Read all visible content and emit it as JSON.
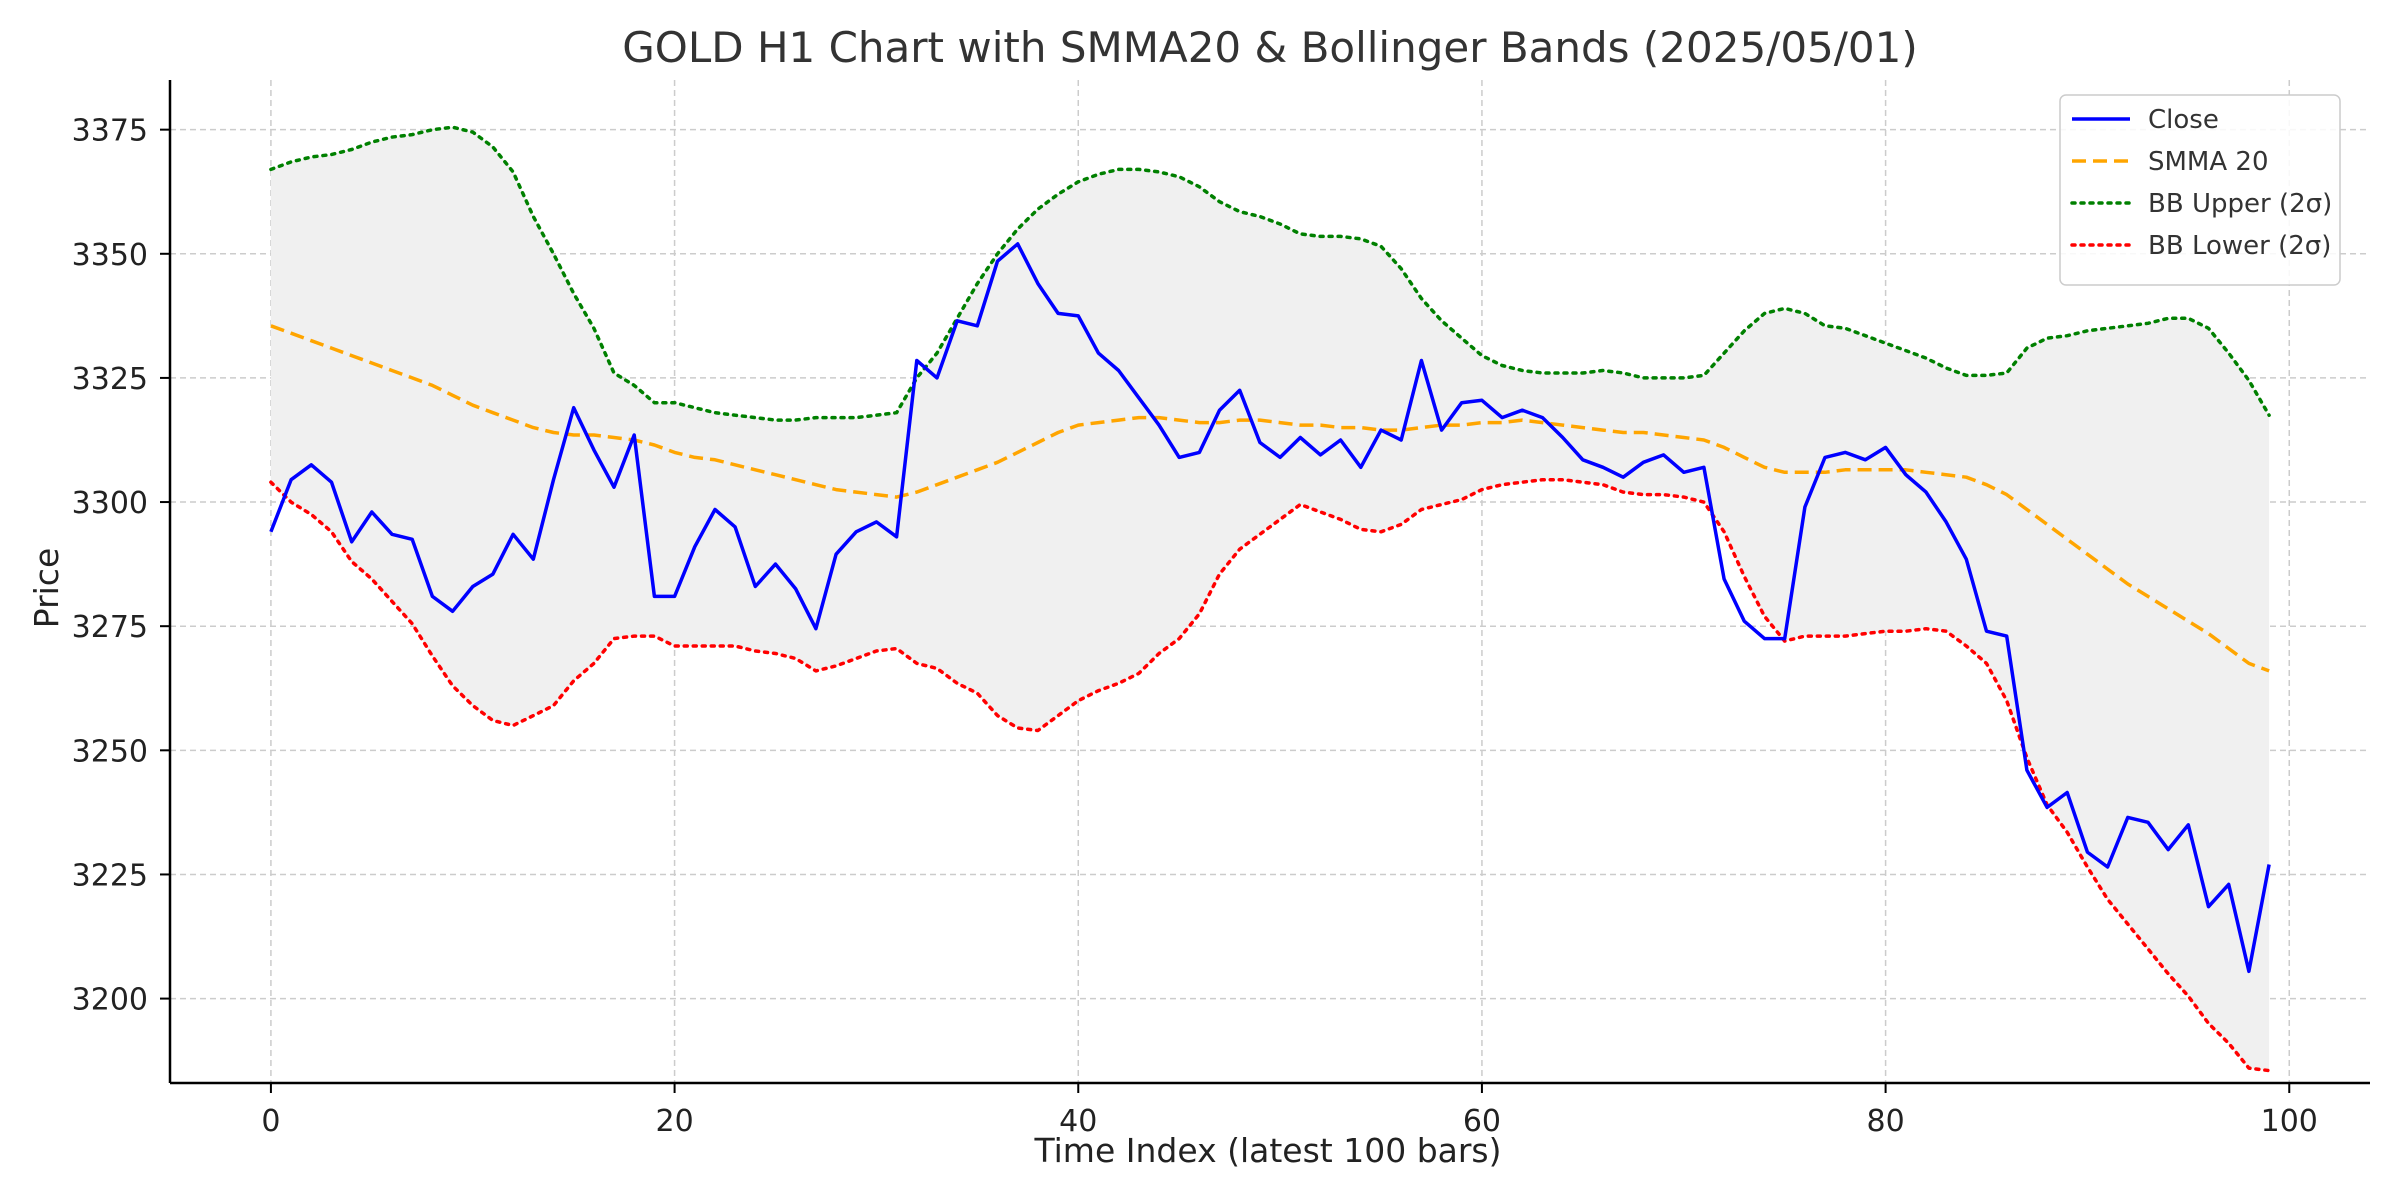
{
  "chart_data": {
    "type": "line",
    "title": "GOLD H1 Chart with SMMA20 & Bollinger Bands (2025/05/01)",
    "xlabel": "Time Index (latest 100 bars)",
    "ylabel": "Price",
    "xlim": [
      -5,
      104
    ],
    "ylim": [
      3183,
      3385
    ],
    "xticks": [
      0,
      20,
      40,
      60,
      80,
      100
    ],
    "yticks": [
      3200,
      3225,
      3250,
      3275,
      3300,
      3325,
      3350,
      3375
    ],
    "grid": true,
    "legend_position": "top-right",
    "band_fill_color": "#f0f0f0",
    "x": [
      0,
      1,
      2,
      3,
      4,
      5,
      6,
      7,
      8,
      9,
      10,
      11,
      12,
      13,
      14,
      15,
      16,
      17,
      18,
      19,
      20,
      21,
      22,
      23,
      24,
      25,
      26,
      27,
      28,
      29,
      30,
      31,
      32,
      33,
      34,
      35,
      36,
      37,
      38,
      39,
      40,
      41,
      42,
      43,
      44,
      45,
      46,
      47,
      48,
      49,
      50,
      51,
      52,
      53,
      54,
      55,
      56,
      57,
      58,
      59,
      60,
      61,
      62,
      63,
      64,
      65,
      66,
      67,
      68,
      69,
      70,
      71,
      72,
      73,
      74,
      75,
      76,
      77,
      78,
      79,
      80,
      81,
      82,
      83,
      84,
      85,
      86,
      87,
      88,
      89,
      90,
      91,
      92,
      93,
      94,
      95,
      96,
      97,
      98,
      99
    ],
    "series": [
      {
        "name": "Close",
        "color": "#0000ff",
        "style": "solid",
        "values": [
          3294,
          3304.5,
          3307.5,
          3304,
          3292,
          3298,
          3293.5,
          3292.5,
          3281,
          3278,
          3283,
          3285.5,
          3293.5,
          3288.5,
          3304.5,
          3319,
          3310.5,
          3303,
          3313.5,
          3281,
          3281,
          3291,
          3298.5,
          3295,
          3283,
          3287.5,
          3282.5,
          3274.5,
          3289.5,
          3294,
          3296,
          3293,
          3328.5,
          3325,
          3336.5,
          3335.5,
          3348.5,
          3352,
          3344,
          3338,
          3337.5,
          3330,
          3326.5,
          3321,
          3315.5,
          3309,
          3310,
          3318.5,
          3322.5,
          3312,
          3309,
          3313,
          3309.5,
          3312.5,
          3307,
          3314.5,
          3312.5,
          3328.5,
          3314.5,
          3320,
          3320.5,
          3317,
          3318.5,
          3317,
          3313,
          3308.5,
          3307,
          3305,
          3308,
          3309.5,
          3306,
          3307,
          3284.5,
          3276,
          3272.5,
          3272.5,
          3299,
          3309,
          3310,
          3308.5,
          3311,
          3305.5,
          3302,
          3296,
          3288.5,
          3274,
          3273,
          3246,
          3238.5,
          3241.5,
          3229.5,
          3226.5,
          3236.5,
          3235.5,
          3230,
          3235,
          3218.5,
          3223,
          3205.5,
          3227
        ]
      },
      {
        "name": "SMMA 20",
        "color": "#ffa500",
        "style": "dashed",
        "values": [
          3335.5,
          3334,
          3332.5,
          3331,
          3329.5,
          3328,
          3326.5,
          3325,
          3323.5,
          3321.5,
          3319.5,
          3318,
          3316.5,
          3315,
          3314,
          3313.5,
          3313.5,
          3313,
          3312.5,
          3311.5,
          3310,
          3309,
          3308.5,
          3307.5,
          3306.5,
          3305.5,
          3304.5,
          3303.5,
          3302.5,
          3302,
          3301.5,
          3301,
          3302,
          3303.5,
          3305,
          3306.5,
          3308,
          3310,
          3312,
          3314,
          3315.5,
          3316,
          3316.5,
          3317,
          3317,
          3316.5,
          3316,
          3316,
          3316.5,
          3316.5,
          3316,
          3315.5,
          3315.5,
          3315,
          3315,
          3314.5,
          3314.5,
          3315,
          3315.5,
          3315.5,
          3316,
          3316,
          3316.5,
          3316,
          3315.5,
          3315,
          3314.5,
          3314,
          3314,
          3313.5,
          3313,
          3312.5,
          3311,
          3309,
          3307,
          3306,
          3306,
          3306,
          3306.5,
          3306.5,
          3306.5,
          3306.5,
          3306,
          3305.5,
          3305,
          3303.5,
          3301.5,
          3298.5,
          3295.5,
          3292.5,
          3289.5,
          3286.5,
          3283.5,
          3281,
          3278.5,
          3276,
          3273.5,
          3270.5,
          3267.5,
          3266
        ]
      },
      {
        "name": "BB Upper (2σ)",
        "color": "#008000",
        "style": "dotted",
        "values": [
          3367,
          3368.5,
          3369.5,
          3370,
          3371,
          3372.5,
          3373.5,
          3374,
          3375,
          3375.5,
          3374.5,
          3371.5,
          3366.5,
          3357.5,
          3350,
          3342,
          3335,
          3326,
          3323.5,
          3320,
          3320,
          3319,
          3318,
          3317.5,
          3317,
          3316.5,
          3316.5,
          3317,
          3317,
          3317,
          3317.5,
          3318,
          3325,
          3330,
          3337,
          3344,
          3350,
          3355,
          3359,
          3362,
          3364.5,
          3366,
          3367,
          3367,
          3366.5,
          3365.5,
          3363.5,
          3360.5,
          3358.5,
          3357.5,
          3356,
          3354,
          3353.5,
          3353.5,
          3353,
          3351.5,
          3347,
          3341,
          3336.5,
          3333,
          3329.5,
          3327.5,
          3326.5,
          3326,
          3326,
          3326,
          3326.5,
          3326,
          3325,
          3325,
          3325,
          3325.5,
          3330,
          3334.5,
          3338,
          3339,
          3338,
          3335.5,
          3335,
          3333.5,
          3332,
          3330.5,
          3329,
          3327,
          3325.5,
          3325.5,
          3326,
          3331,
          3333,
          3333.5,
          3334.5,
          3335,
          3335.5,
          3336,
          3337,
          3337,
          3335,
          3330,
          3324.5,
          3317.5
        ]
      },
      {
        "name": "BB Lower (2σ)",
        "color": "#ff0000",
        "style": "dotted",
        "values": [
          3304,
          3300,
          3297.5,
          3294,
          3288,
          3284.5,
          3280,
          3275.5,
          3269,
          3263,
          3259,
          3256,
          3255,
          3257,
          3259,
          3264,
          3267.5,
          3272.5,
          3273,
          3273,
          3271,
          3271,
          3271,
          3271,
          3270,
          3269.5,
          3268.5,
          3266,
          3267,
          3268.5,
          3270,
          3270.5,
          3267.5,
          3266.5,
          3263.5,
          3261.5,
          3257,
          3254.5,
          3254,
          3257,
          3260,
          3262,
          3263.5,
          3265.5,
          3269.5,
          3272.5,
          3277.5,
          3285.5,
          3290.5,
          3293.5,
          3296.5,
          3299.5,
          3298,
          3296.5,
          3294.5,
          3294,
          3295.5,
          3298.5,
          3299.5,
          3300.5,
          3302.5,
          3303.5,
          3304,
          3304.5,
          3304.5,
          3304,
          3303.5,
          3302,
          3301.5,
          3301.5,
          3301,
          3300,
          3294,
          3285,
          3277,
          3272,
          3273,
          3273,
          3273,
          3273.5,
          3274,
          3274,
          3274.5,
          3274,
          3271,
          3267.5,
          3260,
          3248.5,
          3239,
          3233.5,
          3226.5,
          3220,
          3215,
          3210,
          3205,
          3200.5,
          3195,
          3191,
          3186,
          3185.5
        ]
      }
    ]
  }
}
